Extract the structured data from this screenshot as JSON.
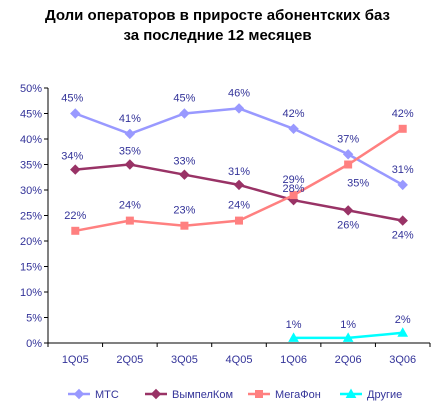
{
  "chart_data": {
    "type": "line",
    "title_line1": "Доли операторов в приросте абонентских баз",
    "title_line2": "за последние 12 месяцев",
    "xlabel": "",
    "ylabel": "",
    "categories": [
      "1Q05",
      "2Q05",
      "3Q05",
      "4Q05",
      "1Q06",
      "2Q06",
      "3Q06"
    ],
    "ylim": [
      0,
      50
    ],
    "yticks": [
      "0%",
      "5%",
      "10%",
      "15%",
      "20%",
      "25%",
      "30%",
      "35%",
      "40%",
      "45%",
      "50%"
    ],
    "grid": false,
    "legend_position": "bottom",
    "series": [
      {
        "name": "МТС",
        "color": "#9999ff",
        "marker": "diamond",
        "values": [
          45,
          41,
          45,
          46,
          42,
          37,
          31
        ],
        "labels": [
          "45%",
          "41%",
          "45%",
          "46%",
          "42%",
          "37%",
          "31%"
        ]
      },
      {
        "name": "ВымпелКом",
        "color": "#993366",
        "marker": "diamond",
        "values": [
          34,
          35,
          33,
          31,
          28,
          26,
          24
        ],
        "labels": [
          "34%",
          "35%",
          "33%",
          "31%",
          "28%",
          "26%",
          "24%"
        ]
      },
      {
        "name": "МегаФон",
        "color": "#ff8080",
        "marker": "square",
        "values": [
          22,
          24,
          23,
          24,
          29,
          35,
          42
        ],
        "labels": [
          "22%",
          "24%",
          "23%",
          "24%",
          "29%",
          "35%",
          "42%"
        ]
      },
      {
        "name": "Другие",
        "color": "#00ffff",
        "marker": "triangle",
        "values": [
          null,
          null,
          null,
          null,
          1,
          1,
          2
        ],
        "labels": [
          null,
          null,
          null,
          null,
          "1%",
          "1%",
          "2%"
        ]
      }
    ]
  }
}
